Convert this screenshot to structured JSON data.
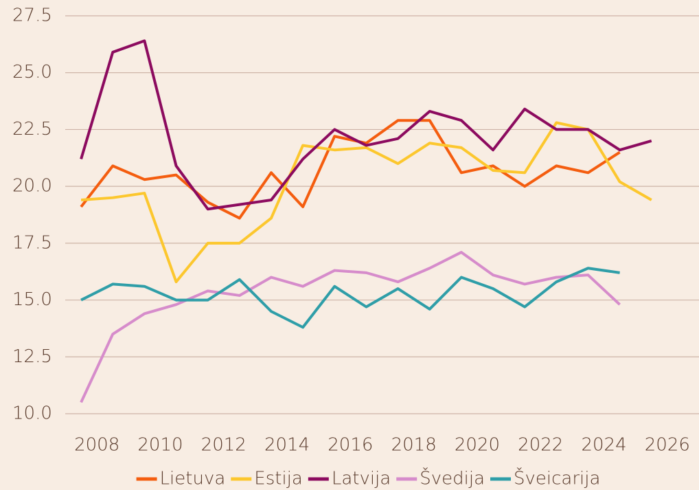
{
  "chart_data": {
    "type": "line",
    "x": [
      2007.5,
      2008.5,
      2009.5,
      2010.5,
      2011.5,
      2012.5,
      2013.5,
      2014.5,
      2015.5,
      2016.5,
      2017.5,
      2018.5,
      2019.5,
      2020.5,
      2021.5,
      2022.5,
      2023.5,
      2024.5,
      2025.5
    ],
    "series": [
      {
        "name": "Lietuva",
        "color": "#f45d0f",
        "values": [
          19.1,
          20.9,
          20.3,
          20.5,
          19.3,
          18.6,
          20.6,
          19.1,
          22.2,
          21.9,
          22.9,
          22.9,
          20.6,
          20.9,
          20.0,
          20.9,
          20.6,
          21.5,
          null
        ]
      },
      {
        "name": "Estija",
        "color": "#fcc72e",
        "values": [
          19.4,
          19.5,
          19.7,
          15.8,
          17.5,
          17.5,
          18.6,
          21.8,
          21.6,
          21.7,
          21.0,
          21.9,
          21.7,
          20.7,
          20.6,
          22.8,
          22.5,
          20.2,
          19.4
        ]
      },
      {
        "name": "Latvija",
        "color": "#8c0b5f",
        "values": [
          21.2,
          25.9,
          26.4,
          20.9,
          19.0,
          19.2,
          19.4,
          21.2,
          22.5,
          21.8,
          22.1,
          23.3,
          22.9,
          21.6,
          23.4,
          22.5,
          22.5,
          21.6,
          22.0
        ]
      },
      {
        "name": "Švedija",
        "color": "#d68ccb",
        "values": [
          10.5,
          13.5,
          14.4,
          14.8,
          15.4,
          15.2,
          16.0,
          15.6,
          16.3,
          16.2,
          15.8,
          16.4,
          17.1,
          16.1,
          15.7,
          16.0,
          16.1,
          14.8,
          null
        ]
      },
      {
        "name": "Šveicarija",
        "color": "#2f9ea8",
        "values": [
          15.0,
          15.7,
          15.6,
          15.0,
          15.0,
          15.9,
          14.5,
          13.8,
          15.6,
          14.7,
          15.5,
          14.6,
          16.0,
          15.5,
          14.7,
          15.8,
          16.4,
          16.2,
          null
        ]
      }
    ],
    "xlim": [
      2007,
      2027
    ],
    "xticks": [
      2008,
      2010,
      2012,
      2014,
      2016,
      2018,
      2020,
      2022,
      2024,
      2026
    ],
    "ylim": [
      10,
      27.5
    ],
    "yticks": [
      {
        "value": 10,
        "label": "10.0"
      },
      {
        "value": 12.5,
        "label": "12.5"
      },
      {
        "value": 15,
        "label": "15.0"
      },
      {
        "value": 17.5,
        "label": "17.5"
      },
      {
        "value": 20,
        "label": "20.0"
      },
      {
        "value": 22.5,
        "label": "22.5"
      },
      {
        "value": 25,
        "label": "25.0"
      },
      {
        "value": 27.5,
        "label": "27.5"
      }
    ],
    "grid": true,
    "legend": "bottom"
  }
}
